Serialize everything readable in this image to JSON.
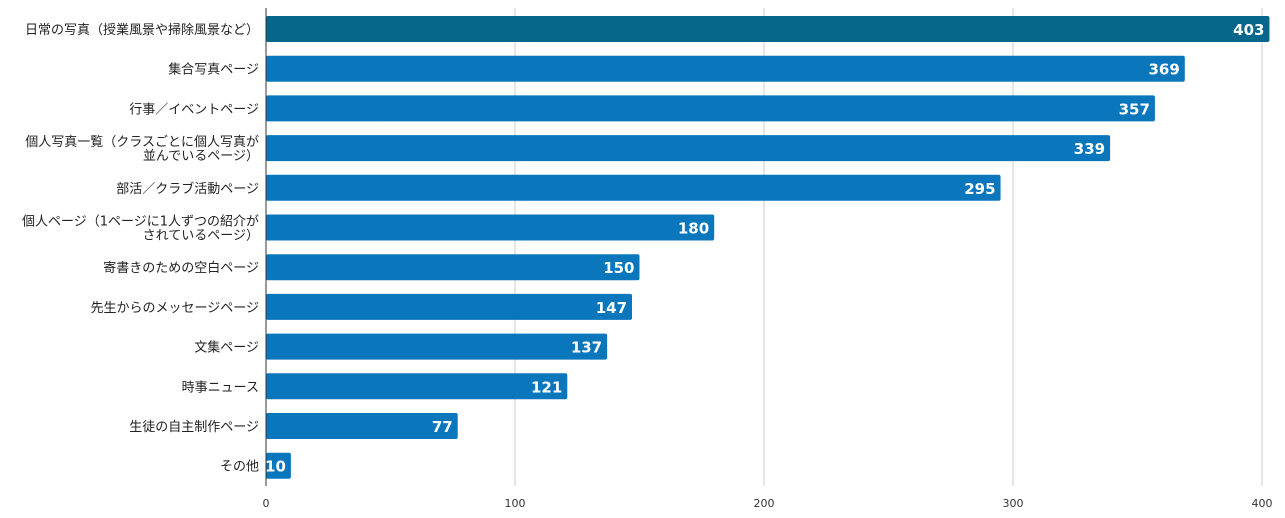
{
  "chart_data": {
    "type": "bar",
    "orientation": "horizontal",
    "categories": [
      [
        "日常の写真（授業風景や掃除風景など）"
      ],
      [
        "集合写真ページ"
      ],
      [
        "行事／イベントページ"
      ],
      [
        "個人写真一覧（クラスごとに個人写真が",
        "並んでいるページ）"
      ],
      [
        "部活／クラブ活動ページ"
      ],
      [
        "個人ページ（1ページに1人ずつの紹介が",
        "されているページ）"
      ],
      [
        "寄書きのための空白ページ"
      ],
      [
        "先生からのメッセージページ"
      ],
      [
        "文集ページ"
      ],
      [
        "時事ニュース"
      ],
      [
        "生徒の自主制作ページ"
      ],
      [
        "その他"
      ]
    ],
    "values": [
      403,
      369,
      357,
      339,
      295,
      180,
      150,
      147,
      137,
      121,
      77,
      10
    ],
    "xlim": [
      0,
      400
    ],
    "xticks": [
      "0",
      "100",
      "200",
      "300",
      "400"
    ],
    "grid": true,
    "colors": {
      "bar": "#0a77bd",
      "highlight": "#07668b",
      "grid": "#cccccc",
      "axis": "#333333",
      "label": "#222222",
      "value_label": "#ffffff"
    }
  }
}
